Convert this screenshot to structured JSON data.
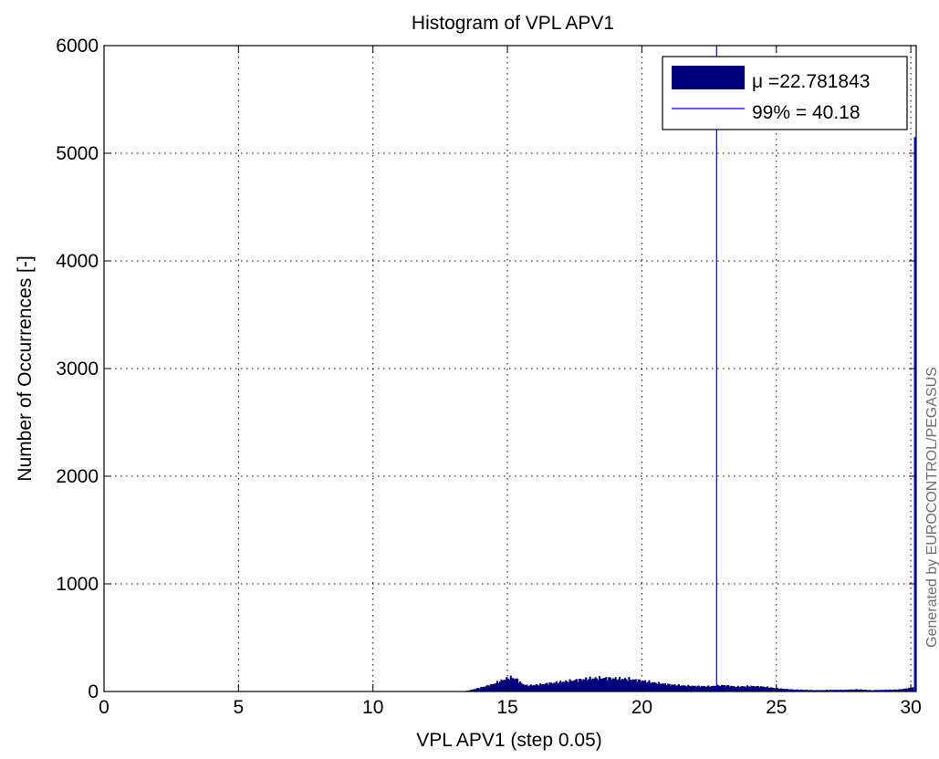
{
  "chart_data": {
    "type": "bar",
    "title": "Histogram of VPL APV1",
    "xlabel": "VPL APV1 (step 0.05)",
    "ylabel": "Number of Occurrences [-]",
    "xlim": [
      0,
      30.2
    ],
    "ylim": [
      0,
      6000
    ],
    "xticks": [
      0,
      5,
      10,
      15,
      20,
      25,
      30
    ],
    "yticks": [
      0,
      1000,
      2000,
      3000,
      4000,
      5000,
      6000
    ],
    "xtick_labels": [
      "0",
      "5",
      "10",
      "15",
      "20",
      "25",
      "30"
    ],
    "ytick_labels": [
      "0",
      "1000",
      "2000",
      "3000",
      "4000",
      "5000",
      "6000"
    ],
    "grid": true,
    "legend_position": "top-right",
    "bar_color": "#00007f",
    "line_color": "#0000ff",
    "bin_step": 0.05,
    "histogram_envelope": {
      "x": [
        13.3,
        13.5,
        13.8,
        14.1,
        14.4,
        14.7,
        14.9,
        15.1,
        15.2,
        15.35,
        15.5,
        15.7,
        16.0,
        16.5,
        17.0,
        17.5,
        18.0,
        18.5,
        19.0,
        19.5,
        20.0,
        20.5,
        21.0,
        21.5,
        22.0,
        22.5,
        23.0,
        23.5,
        24.0,
        24.5,
        25.0,
        25.5,
        26.0,
        26.5,
        27.0,
        27.5,
        28.0,
        28.5,
        29.0,
        29.5,
        29.9,
        30.05
      ],
      "values": [
        0,
        8,
        25,
        45,
        65,
        95,
        115,
        130,
        125,
        110,
        75,
        55,
        60,
        75,
        90,
        105,
        120,
        125,
        120,
        115,
        100,
        80,
        65,
        55,
        50,
        48,
        58,
        45,
        50,
        45,
        30,
        20,
        15,
        12,
        15,
        15,
        20,
        12,
        15,
        18,
        30,
        40
      ]
    },
    "spike": {
      "x": 30.15,
      "value": 5150
    },
    "series": [
      {
        "name": "μ =22.781843",
        "type": "histogram"
      },
      {
        "name": "99% = 40.18",
        "type": "vline",
        "x": 22.78
      }
    ],
    "watermark": "Generated by EUROCONTROL/PEGASUS"
  }
}
